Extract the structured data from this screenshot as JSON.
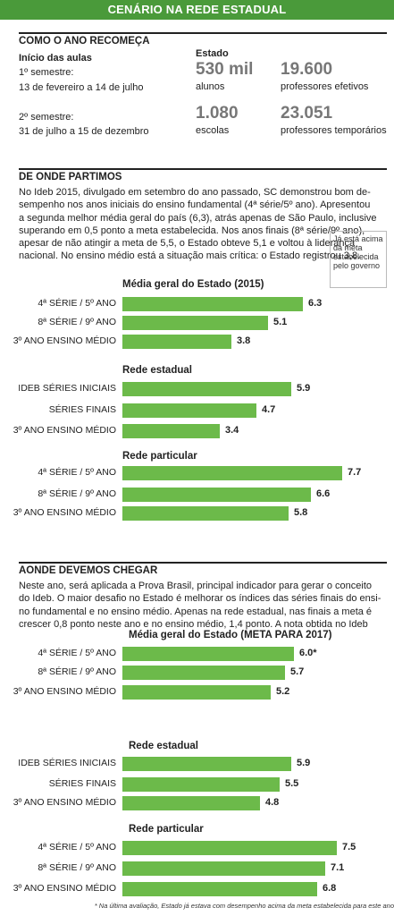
{
  "header": {
    "title": "CENÁRIO NA REDE ESTADUAL"
  },
  "section1": {
    "title": "COMO O ANO RECOMEÇA",
    "classes_heading": "Início das aulas",
    "sem1_label": "1º semestre:",
    "sem1_dates": "13 de fevereiro a 14 de julho",
    "sem2_label": "2º semestre:",
    "sem2_dates": "31 de julho a 15 de dezembro",
    "state_heading": "Estado",
    "stats": [
      {
        "value": "530 mil",
        "label": "alunos"
      },
      {
        "value": "19.600",
        "label": "professores efetivos"
      },
      {
        "value": "1.080",
        "label": "escolas"
      },
      {
        "value": "23.051",
        "label": "professores temporários"
      }
    ]
  },
  "section2": {
    "title": "DE ONDE PARTIMOS",
    "lines": [
      "No Ideb 2015, divulgado em setembro do ano passado, SC demonstrou bom de-",
      "sempenho nos anos iniciais do ensino fundamental (4ª série/5º ano). Apresentou",
      "a segunda melhor média geral do país (6,3), atrás apenas de São Paulo, inclusive",
      "superando em 0,5 ponto a meta estabelecida. Nos anos finais (8ª série/9º ano),",
      "apesar de não atingir a meta de 5,5, o Estado obteve 5,1 e voltou à liderança",
      "nacional. No ensino médio está a situação mais crítica: o Estado registrou 3,8."
    ],
    "note": "Já está acima da meta estabelecida pelo governo"
  },
  "section3": {
    "title": "AONDE DEVEMOS CHEGAR",
    "lines": [
      "Neste ano, será aplicada a Prova Brasil, principal indicador para gerar o conceito",
      "do Ideb. O maior desafio no Estado é melhorar os índices das séries finais do ensi-",
      "no fundamental e no ensino médio. Apenas na rede estadual, nas finais a meta é",
      "crescer 0,8 ponto neste ano e no ensino médio, 1,4 ponto. A nota obtida no Ideb"
    ]
  },
  "chart_data": [
    {
      "type": "bar",
      "title": "Média geral do Estado (2015)",
      "categories": [
        "4ª SÉRIE / 5º ANO",
        "8ª SÉRIE / 9º ANO",
        "3º ANO ENSINO MÉDIO"
      ],
      "values": [
        6.3,
        5.1,
        3.8
      ],
      "labels": [
        "6.3",
        "5.1",
        "3.8"
      ]
    },
    {
      "type": "bar",
      "title": "Rede estadual",
      "categories": [
        "IDEB SÉRIES INICIAIS",
        "SÉRIES FINAIS",
        "3º ANO ENSINO MÉDIO"
      ],
      "values": [
        5.9,
        4.7,
        3.4
      ],
      "labels": [
        "5.9",
        "4.7",
        "3.4"
      ]
    },
    {
      "type": "bar",
      "title": "Rede particular",
      "categories": [
        "4ª SÉRIE / 5º ANO",
        "8ª SÉRIE / 9º ANO",
        "3º ANO ENSINO MÉDIO"
      ],
      "values": [
        7.7,
        6.6,
        5.8
      ],
      "labels": [
        "7.7",
        "6.6",
        "5.8"
      ]
    },
    {
      "type": "bar",
      "title": "Média geral do Estado (META PARA 2017)",
      "categories": [
        "4ª SÉRIE / 5º ANO",
        "8ª SÉRIE / 9º ANO",
        "3º ANO ENSINO MÉDIO"
      ],
      "values": [
        6.0,
        5.7,
        5.2
      ],
      "labels": [
        "6.0*",
        "5.7",
        "5.2"
      ]
    },
    {
      "type": "bar",
      "title": "Rede estadual",
      "categories": [
        "IDEB SÉRIES INICIAIS",
        "SÉRIES FINAIS",
        "3º ANO ENSINO MÉDIO"
      ],
      "values": [
        5.9,
        5.5,
        4.8
      ],
      "labels": [
        "5.9",
        "5.5",
        "4.8"
      ]
    },
    {
      "type": "bar",
      "title": "Rede particular",
      "categories": [
        "4ª SÉRIE / 5º ANO",
        "8ª SÉRIE / 9º ANO",
        "3º ANO ENSINO MÉDIO"
      ],
      "values": [
        7.5,
        7.1,
        6.8
      ],
      "labels": [
        "7.5",
        "7.1",
        "6.8"
      ]
    }
  ],
  "footnote": "* Na última avaliação, Estado já estava com desempenho acima da meta estabelecida para este ano",
  "colors": {
    "accent": "#4a9a3a",
    "bar": "#6cba4a",
    "stat_number": "#777777"
  }
}
